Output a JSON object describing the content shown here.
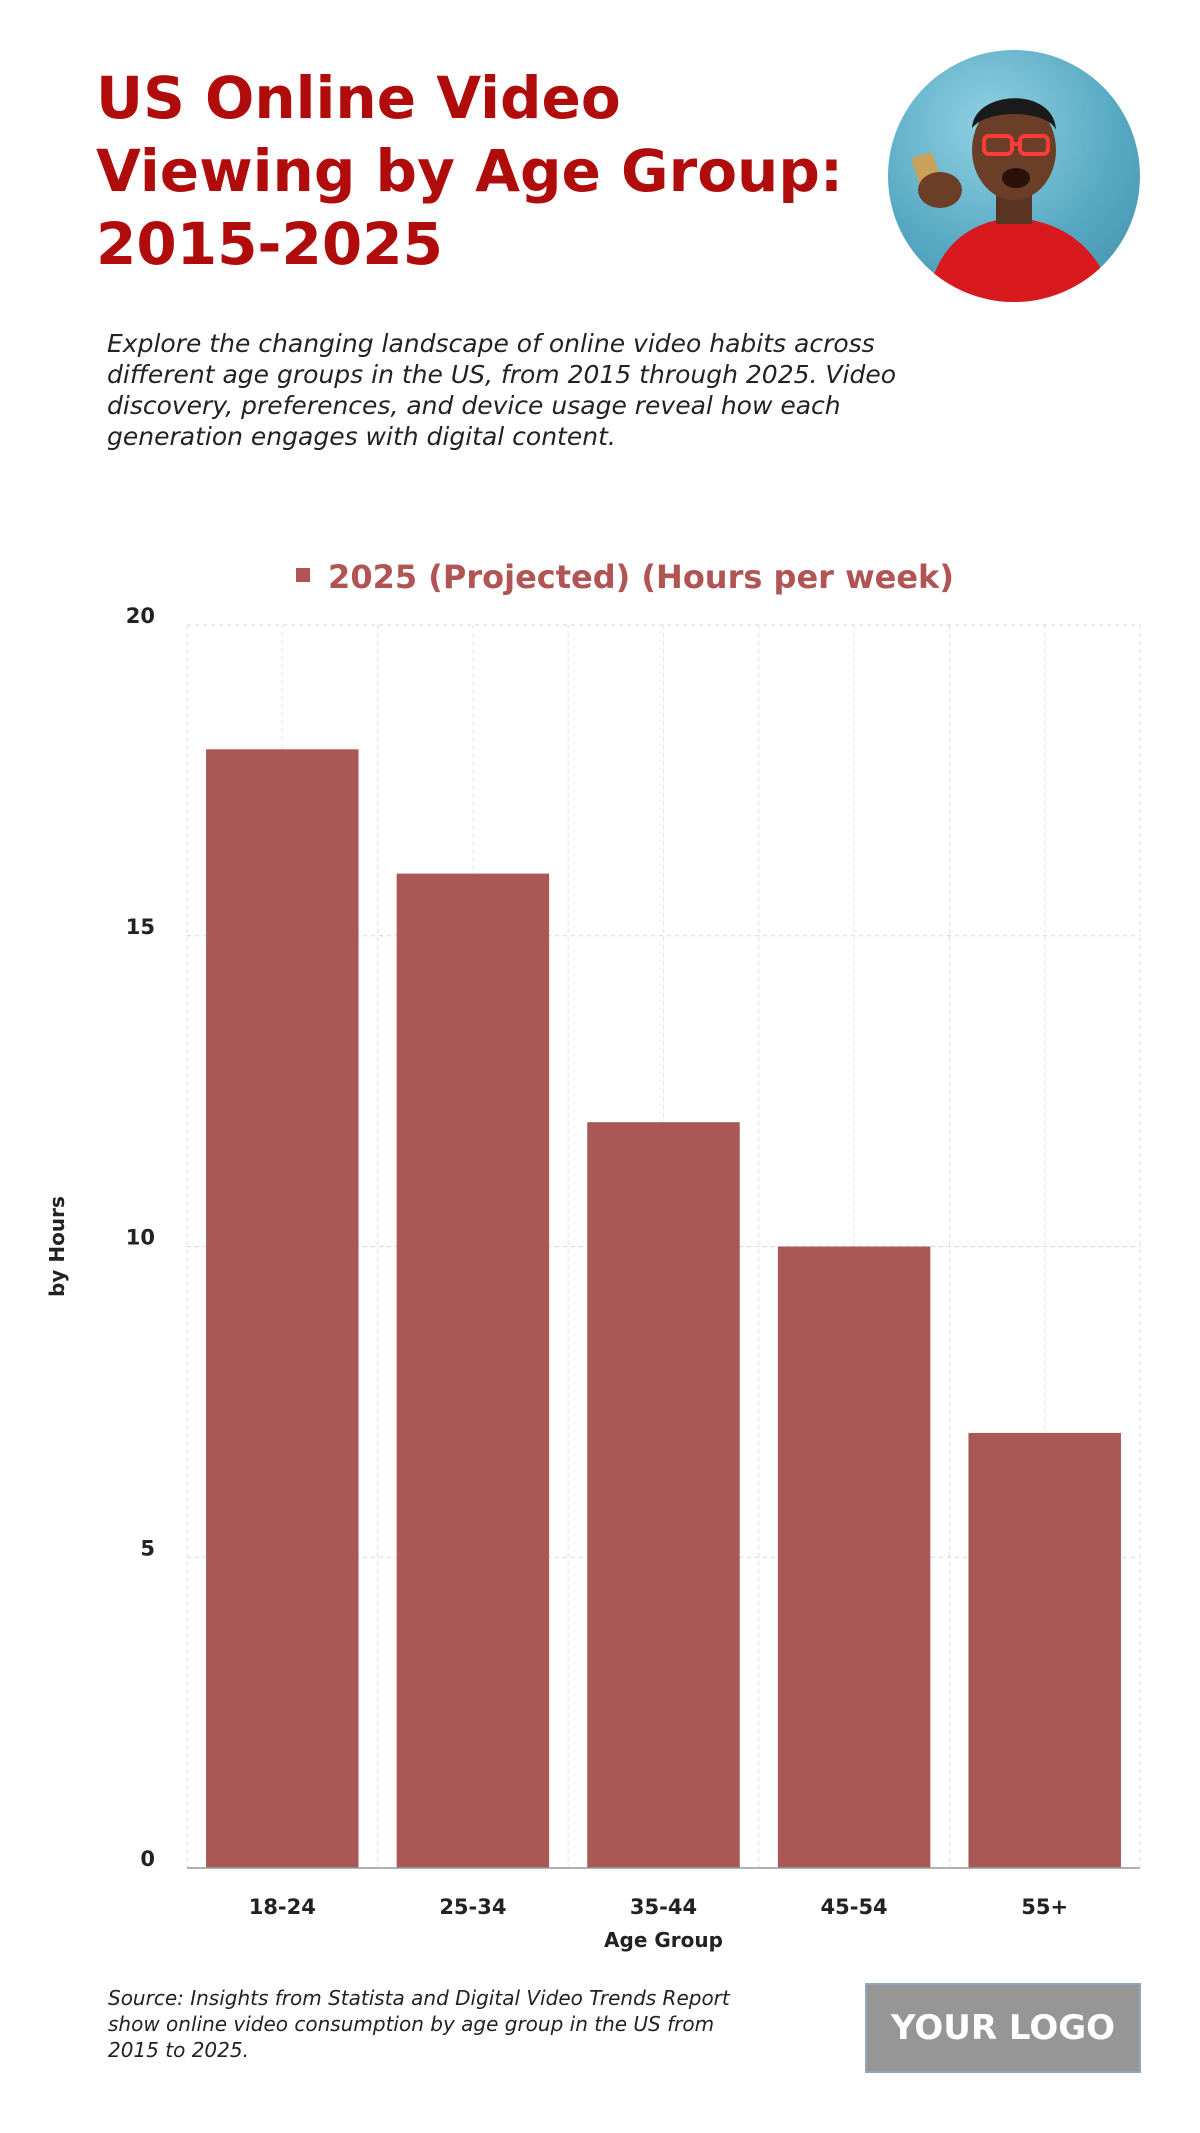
{
  "header": {
    "title": "US Online Video Viewing by Age Group: 2015-2025",
    "subtitle": "Explore the changing landscape of online video habits across different age groups in the US, from 2015 through 2025. Video discovery, preferences, and device usage reveal how each generation engages with digital content."
  },
  "footer": {
    "source": "Source: Insights from Statista and Digital Video Trends Report show online video consumption by age group in the US from 2015 to 2025.",
    "logo": "YOUR LOGO"
  },
  "colors": {
    "title": "#b00c0c",
    "bar": "#a95856",
    "legend": "#b05454"
  },
  "chart_data": {
    "type": "bar",
    "categories": [
      "18-24",
      "25-34",
      "35-44",
      "45-54",
      "55+"
    ],
    "series": [
      {
        "name": "2025 (Projected) (Hours per week)",
        "values": [
          18,
          16,
          12,
          10,
          7
        ]
      }
    ],
    "xlabel": "Age Group",
    "ylabel": "by Hours",
    "ylim": [
      0,
      20
    ],
    "yticks": [
      0,
      5,
      10,
      15,
      20
    ],
    "grid": true,
    "legend_position": "top-center"
  }
}
